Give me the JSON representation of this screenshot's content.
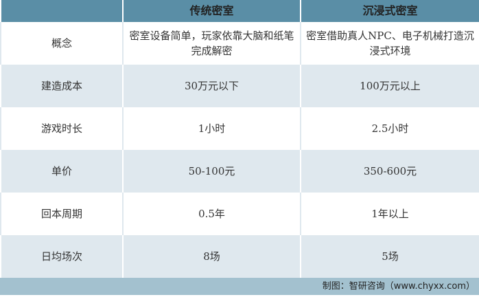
{
  "headers": [
    "",
    "传统密室",
    "沉浸式密室"
  ],
  "rows": [
    [
      "概念",
      "密室设备简单，玩家依靠大脑和纸笔完成解密",
      "密室借助真人NPC、电子机械打造沉浸式环境"
    ],
    [
      "建造成本",
      "30万元以下",
      "100万元以上"
    ],
    [
      "游戏时长",
      "1小时",
      "2.5小时"
    ],
    [
      "单价",
      "50-100元",
      "350-600元"
    ],
    [
      "回本周期",
      "0.5年",
      "1年以上"
    ],
    [
      "日均场次",
      "8场",
      "5场"
    ]
  ],
  "footer": "制图：智研咨询（www.chyxx.com）"
}
